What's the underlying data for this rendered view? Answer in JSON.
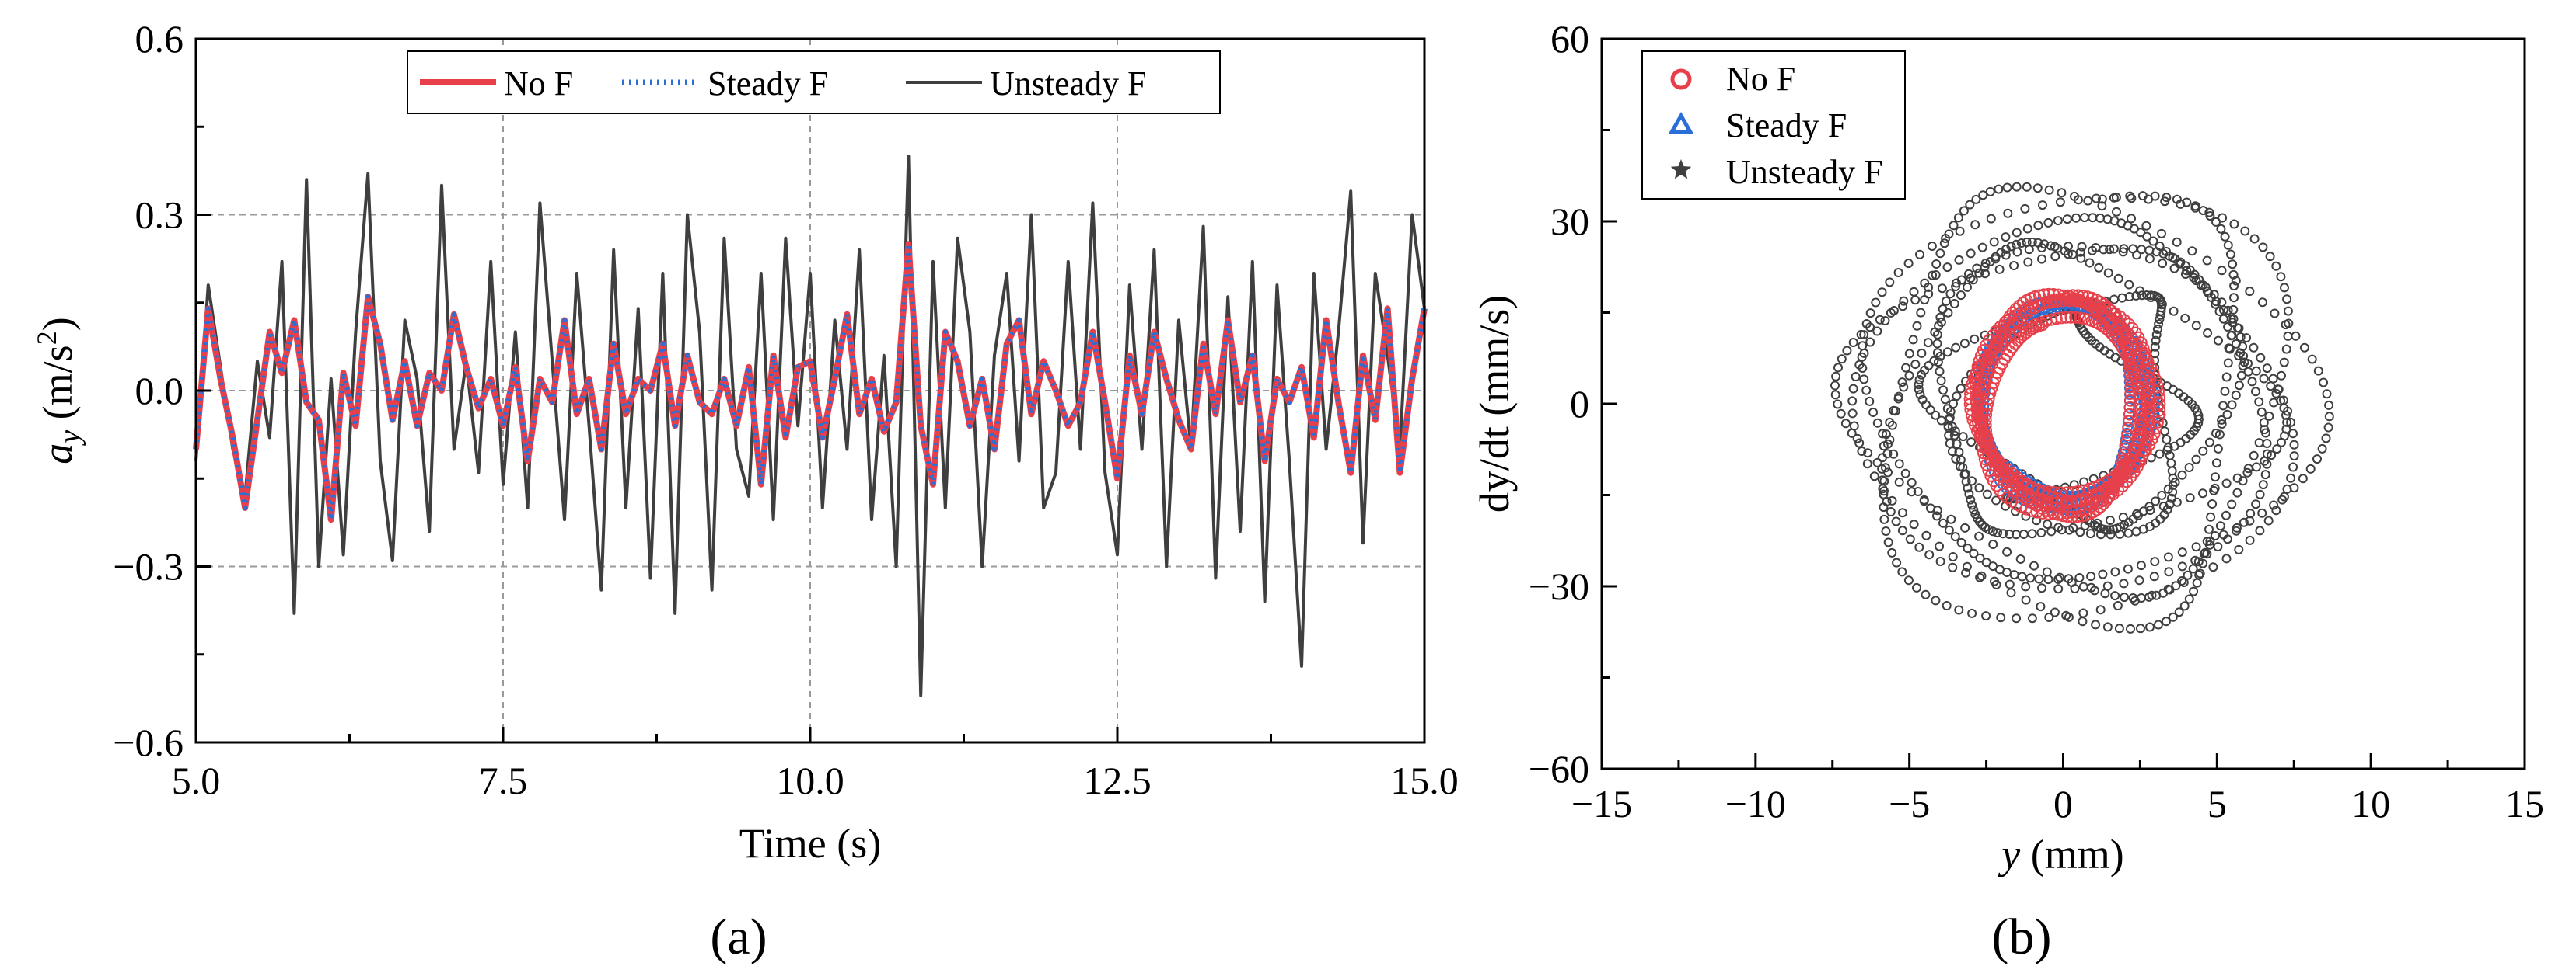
{
  "panels": {
    "a": "(a)",
    "b": "(b)"
  },
  "colors": {
    "no_f": "#e8404a",
    "steady_f": "#2a6fd6",
    "unsteady_f": "#3f3f3f"
  },
  "chart_data": [
    {
      "type": "line",
      "panel": "a",
      "title": "",
      "xlabel": "Time (s)",
      "ylabel_main": "a",
      "ylabel_sub": "y",
      "ylabel_unit_pre": " (m/s",
      "ylabel_unit_sup": "2",
      "ylabel_unit_post": ")",
      "xlim": [
        5.0,
        15.0
      ],
      "ylim": [
        -0.6,
        0.6
      ],
      "xticks": [
        5.0,
        7.5,
        10.0,
        12.5,
        15.0
      ],
      "xtick_labels": [
        "5.0",
        "7.5",
        "10.0",
        "12.5",
        "15.0"
      ],
      "yticks": [
        -0.6,
        -0.3,
        0.0,
        0.3,
        0.6
      ],
      "ytick_labels": [
        "−0.6",
        "−0.3",
        "0.0",
        "0.3",
        "0.6"
      ],
      "grid": true,
      "legend_position": "top-center",
      "series": [
        {
          "name": "No F",
          "style": "solid",
          "x": [
            5.0,
            5.1,
            5.2,
            5.3,
            5.4,
            5.5,
            5.6,
            5.7,
            5.8,
            5.9,
            6.0,
            6.1,
            6.2,
            6.3,
            6.4,
            6.5,
            6.6,
            6.7,
            6.8,
            6.9,
            7.0,
            7.1,
            7.2,
            7.3,
            7.4,
            7.5,
            7.6,
            7.7,
            7.8,
            7.9,
            8.0,
            8.1,
            8.2,
            8.3,
            8.4,
            8.5,
            8.6,
            8.7,
            8.8,
            8.9,
            9.0,
            9.1,
            9.2,
            9.3,
            9.4,
            9.5,
            9.6,
            9.7,
            9.8,
            9.9,
            10.0,
            10.1,
            10.2,
            10.3,
            10.4,
            10.5,
            10.6,
            10.7,
            10.8,
            10.9,
            11.0,
            11.1,
            11.2,
            11.3,
            11.4,
            11.5,
            11.6,
            11.7,
            11.8,
            11.9,
            12.0,
            12.1,
            12.2,
            12.3,
            12.4,
            12.5,
            12.6,
            12.7,
            12.8,
            12.9,
            13.0,
            13.1,
            13.2,
            13.3,
            13.4,
            13.5,
            13.6,
            13.7,
            13.8,
            13.9,
            14.0,
            14.1,
            14.2,
            14.3,
            14.4,
            14.5,
            14.6,
            14.7,
            14.8,
            14.9,
            15.0
          ],
          "values": [
            -0.1,
            0.14,
            0.02,
            -0.08,
            -0.2,
            -0.05,
            0.1,
            0.03,
            0.12,
            -0.02,
            -0.05,
            -0.22,
            0.03,
            -0.06,
            0.16,
            0.08,
            -0.05,
            0.05,
            -0.06,
            0.03,
            0.0,
            0.13,
            0.04,
            -0.03,
            0.02,
            -0.06,
            0.04,
            -0.12,
            0.02,
            -0.02,
            0.12,
            -0.04,
            0.02,
            -0.1,
            0.08,
            -0.04,
            0.02,
            0.0,
            0.08,
            -0.06,
            0.06,
            -0.02,
            -0.04,
            0.02,
            -0.06,
            0.04,
            -0.16,
            0.06,
            -0.08,
            0.04,
            0.05,
            -0.08,
            0.02,
            0.13,
            -0.04,
            0.02,
            -0.07,
            -0.02,
            0.25,
            -0.06,
            -0.16,
            0.1,
            0.05,
            -0.06,
            0.02,
            -0.1,
            0.08,
            0.12,
            -0.04,
            0.05,
            0.0,
            -0.06,
            -0.02,
            0.1,
            -0.02,
            -0.15,
            0.06,
            -0.04,
            0.1,
            0.02,
            -0.05,
            -0.1,
            0.08,
            -0.04,
            0.12,
            -0.02,
            0.06,
            -0.12,
            0.02,
            -0.02,
            0.04,
            -0.08,
            0.12,
            -0.02,
            -0.14,
            0.06,
            -0.05,
            0.14,
            -0.14,
            0.02,
            0.14
          ]
        },
        {
          "name": "Steady F",
          "style": "dotted",
          "x": [
            5.0,
            5.1,
            5.2,
            5.3,
            5.4,
            5.5,
            5.6,
            5.7,
            5.8,
            5.9,
            6.0,
            6.1,
            6.2,
            6.3,
            6.4,
            6.5,
            6.6,
            6.7,
            6.8,
            6.9,
            7.0,
            7.1,
            7.2,
            7.3,
            7.4,
            7.5,
            7.6,
            7.7,
            7.8,
            7.9,
            8.0,
            8.1,
            8.2,
            8.3,
            8.4,
            8.5,
            8.6,
            8.7,
            8.8,
            8.9,
            9.0,
            9.1,
            9.2,
            9.3,
            9.4,
            9.5,
            9.6,
            9.7,
            9.8,
            9.9,
            10.0,
            10.1,
            10.2,
            10.3,
            10.4,
            10.5,
            10.6,
            10.7,
            10.8,
            10.9,
            11.0,
            11.1,
            11.2,
            11.3,
            11.4,
            11.5,
            11.6,
            11.7,
            11.8,
            11.9,
            12.0,
            12.1,
            12.2,
            12.3,
            12.4,
            12.5,
            12.6,
            12.7,
            12.8,
            12.9,
            13.0,
            13.1,
            13.2,
            13.3,
            13.4,
            13.5,
            13.6,
            13.7,
            13.8,
            13.9,
            14.0,
            14.1,
            14.2,
            14.3,
            14.4,
            14.5,
            14.6,
            14.7,
            14.8,
            14.9,
            15.0
          ],
          "values": [
            -0.1,
            0.14,
            0.02,
            -0.08,
            -0.2,
            -0.05,
            0.1,
            0.03,
            0.12,
            -0.02,
            -0.05,
            -0.22,
            0.03,
            -0.06,
            0.16,
            0.08,
            -0.05,
            0.05,
            -0.06,
            0.03,
            0.0,
            0.13,
            0.04,
            -0.03,
            0.02,
            -0.06,
            0.04,
            -0.12,
            0.02,
            -0.02,
            0.12,
            -0.04,
            0.02,
            -0.1,
            0.08,
            -0.04,
            0.02,
            0.0,
            0.08,
            -0.06,
            0.06,
            -0.02,
            -0.04,
            0.02,
            -0.06,
            0.04,
            -0.16,
            0.06,
            -0.08,
            0.04,
            0.05,
            -0.08,
            0.02,
            0.13,
            -0.04,
            0.02,
            -0.07,
            -0.02,
            0.25,
            -0.06,
            -0.16,
            0.1,
            0.05,
            -0.06,
            0.02,
            -0.1,
            0.08,
            0.12,
            -0.04,
            0.05,
            0.0,
            -0.06,
            -0.02,
            0.1,
            -0.02,
            -0.15,
            0.06,
            -0.04,
            0.1,
            0.02,
            -0.05,
            -0.1,
            0.08,
            -0.04,
            0.12,
            -0.02,
            0.06,
            -0.12,
            0.02,
            -0.02,
            0.04,
            -0.08,
            0.12,
            -0.02,
            -0.14,
            0.06,
            -0.05,
            0.14,
            -0.14,
            0.02,
            0.14
          ]
        },
        {
          "name": "Unsteady F",
          "style": "solid",
          "x": [
            5.0,
            5.1,
            5.2,
            5.3,
            5.4,
            5.5,
            5.6,
            5.7,
            5.8,
            5.9,
            6.0,
            6.1,
            6.2,
            6.3,
            6.4,
            6.5,
            6.6,
            6.7,
            6.8,
            6.9,
            7.0,
            7.1,
            7.2,
            7.3,
            7.4,
            7.5,
            7.6,
            7.7,
            7.8,
            7.9,
            8.0,
            8.1,
            8.2,
            8.3,
            8.4,
            8.5,
            8.6,
            8.7,
            8.8,
            8.9,
            9.0,
            9.1,
            9.2,
            9.3,
            9.4,
            9.5,
            9.6,
            9.7,
            9.8,
            9.9,
            10.0,
            10.1,
            10.2,
            10.3,
            10.4,
            10.5,
            10.6,
            10.7,
            10.8,
            10.9,
            11.0,
            11.1,
            11.2,
            11.3,
            11.4,
            11.5,
            11.6,
            11.7,
            11.8,
            11.9,
            12.0,
            12.1,
            12.2,
            12.3,
            12.4,
            12.5,
            12.6,
            12.7,
            12.8,
            12.9,
            13.0,
            13.1,
            13.2,
            13.3,
            13.4,
            13.5,
            13.6,
            13.7,
            13.8,
            13.9,
            14.0,
            14.1,
            14.2,
            14.3,
            14.4,
            14.5,
            14.6,
            14.7,
            14.8,
            14.9,
            15.0
          ],
          "values": [
            -0.12,
            0.18,
            0.04,
            -0.1,
            -0.18,
            0.05,
            -0.08,
            0.22,
            -0.38,
            0.36,
            -0.3,
            0.02,
            -0.28,
            0.1,
            0.37,
            -0.12,
            -0.29,
            0.12,
            0.02,
            -0.24,
            0.35,
            -0.1,
            0.05,
            -0.14,
            0.22,
            -0.16,
            0.1,
            -0.2,
            0.32,
            0.05,
            -0.22,
            0.2,
            -0.06,
            -0.34,
            0.24,
            -0.2,
            0.14,
            -0.32,
            0.2,
            -0.38,
            0.3,
            0.1,
            -0.34,
            0.26,
            -0.1,
            -0.18,
            0.2,
            -0.22,
            0.26,
            -0.06,
            0.2,
            -0.2,
            0.12,
            -0.1,
            0.24,
            -0.22,
            0.06,
            -0.3,
            0.4,
            -0.52,
            0.22,
            -0.2,
            0.26,
            0.1,
            -0.3,
            0.06,
            0.2,
            -0.12,
            0.3,
            -0.2,
            -0.14,
            0.22,
            -0.1,
            0.32,
            -0.14,
            -0.28,
            0.18,
            -0.1,
            0.24,
            -0.3,
            0.12,
            -0.1,
            0.28,
            -0.32,
            0.16,
            -0.24,
            0.22,
            -0.36,
            0.18,
            -0.12,
            -0.47,
            0.2,
            -0.1,
            0.1,
            0.34,
            -0.26,
            0.2,
            0.06,
            -0.1,
            0.3,
            0.14
          ]
        }
      ]
    },
    {
      "type": "scatter",
      "panel": "b",
      "title": "",
      "xlabel_main": "y",
      "xlabel_unit": " (mm)",
      "ylabel": "dy/dt (mm/s)",
      "xlim": [
        -15,
        15
      ],
      "ylim": [
        -60,
        60
      ],
      "xticks": [
        -15,
        -10,
        -5,
        0,
        5,
        10,
        15
      ],
      "xtick_labels": [
        "−15",
        "−10",
        "−5",
        "0",
        "5",
        "10",
        "15"
      ],
      "yticks": [
        -60,
        -30,
        0,
        30,
        60
      ],
      "ytick_labels": [
        "−60",
        "−30",
        "0",
        "30",
        "60"
      ],
      "grid": false,
      "legend_position": "top-left",
      "series": [
        {
          "name": "No F",
          "marker": "circle",
          "orbit": {
            "center": [
              0,
              0
            ],
            "y_amplitude_range": [
              1.0,
              2.9
            ],
            "v_amplitude_range": [
              6,
              18
            ]
          }
        },
        {
          "name": "Steady F",
          "marker": "triangle",
          "orbit": {
            "center": [
              0,
              0
            ],
            "y_amplitude_range": [
              1.0,
              2.8
            ],
            "v_amplitude_range": [
              6,
              17
            ]
          }
        },
        {
          "name": "Unsteady F",
          "marker": "star",
          "orbit": {
            "center": [
              0.5,
              0
            ],
            "y_amplitude_range": [
              2.5,
              7.0
            ],
            "v_amplitude_range": [
              14,
              34
            ]
          }
        }
      ]
    }
  ]
}
